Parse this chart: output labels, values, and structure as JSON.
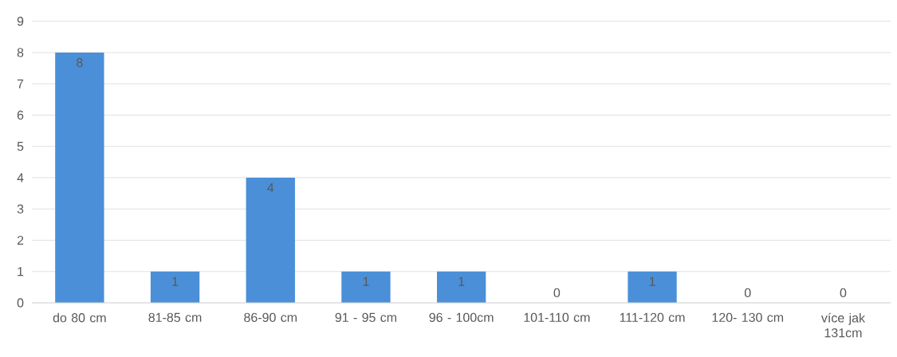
{
  "chart_data": {
    "type": "bar",
    "categories": [
      "do 80 cm",
      "81-85 cm",
      "86-90 cm",
      "91 - 95 cm",
      "96 - 100cm",
      "101-110 cm",
      "111-120 cm",
      "120- 130 cm",
      "více jak 131cm"
    ],
    "values": [
      8,
      1,
      4,
      1,
      1,
      0,
      1,
      0,
      0
    ],
    "color": "#4a8fd8",
    "ylim": [
      0,
      9
    ],
    "yticks": [
      0,
      1,
      2,
      3,
      4,
      5,
      6,
      7,
      8,
      9
    ],
    "grid": "y",
    "data_labels": true
  }
}
